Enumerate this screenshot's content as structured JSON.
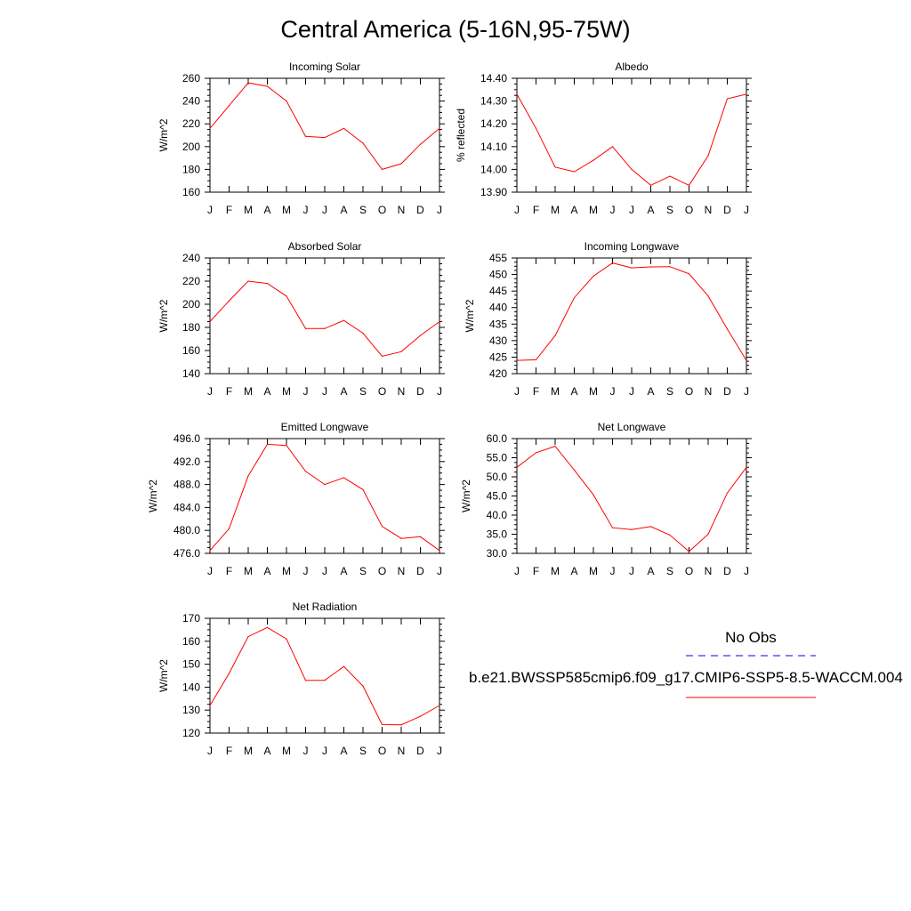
{
  "figure": {
    "title": "Central America (5-16N,95-75W)",
    "legend": {
      "obs_label": "No Obs",
      "obs_color": "#0000ff",
      "model_label": "b.e21.BWSSP585cmip6.f09_g17.CMIP6-SSP5-8.5-WACCM.004",
      "model_color": "#ff0000"
    }
  },
  "chart_data": [
    {
      "type": "line",
      "title": "Incoming Solar",
      "ylabel": "W/m^2",
      "x": [
        "J",
        "F",
        "M",
        "A",
        "M",
        "J",
        "J",
        "A",
        "S",
        "O",
        "N",
        "D",
        "J"
      ],
      "ylim": [
        160,
        260
      ],
      "yticks": [
        "160",
        "180",
        "200",
        "220",
        "240",
        "260"
      ],
      "grid": false,
      "series": [
        {
          "values": [
            216,
            236,
            256,
            253,
            240,
            209,
            208,
            216,
            203,
            180,
            185,
            202,
            216
          ]
        }
      ]
    },
    {
      "type": "line",
      "title": "Albedo",
      "ylabel": "% reflected",
      "x": [
        "J",
        "F",
        "M",
        "A",
        "M",
        "J",
        "J",
        "A",
        "S",
        "O",
        "N",
        "D",
        "J"
      ],
      "ylim": [
        13.9,
        14.4
      ],
      "yticks": [
        "13.90",
        "14.00",
        "14.10",
        "14.20",
        "14.30",
        "14.40"
      ],
      "grid": false,
      "series": [
        {
          "values": [
            14.33,
            14.18,
            14.01,
            13.99,
            14.04,
            14.1,
            14.0,
            13.93,
            13.97,
            13.93,
            14.06,
            14.31,
            14.33
          ]
        }
      ]
    },
    {
      "type": "line",
      "title": "Absorbed Solar",
      "ylabel": "W/m^2",
      "x": [
        "J",
        "F",
        "M",
        "A",
        "M",
        "J",
        "J",
        "A",
        "S",
        "O",
        "N",
        "D",
        "J"
      ],
      "ylim": [
        140,
        240
      ],
      "yticks": [
        "140",
        "160",
        "180",
        "200",
        "220",
        "240"
      ],
      "grid": false,
      "series": [
        {
          "values": [
            185,
            203,
            220,
            218,
            207,
            179,
            179,
            186,
            175,
            155,
            159,
            173,
            185
          ]
        }
      ]
    },
    {
      "type": "line",
      "title": "Incoming Longwave",
      "ylabel": "W/m^2",
      "x": [
        "J",
        "F",
        "M",
        "A",
        "M",
        "J",
        "J",
        "A",
        "S",
        "O",
        "N",
        "D",
        "J"
      ],
      "ylim": [
        420,
        455
      ],
      "yticks": [
        "420",
        "425",
        "430",
        "435",
        "440",
        "445",
        "450",
        "455"
      ],
      "grid": false,
      "series": [
        {
          "values": [
            424,
            424.2,
            431.5,
            443,
            449.5,
            453.5,
            452,
            452.3,
            452.4,
            450.2,
            443.5,
            433.5,
            424
          ]
        }
      ]
    },
    {
      "type": "line",
      "title": "Emitted Longwave",
      "ylabel": "W/m^2",
      "x": [
        "J",
        "F",
        "M",
        "A",
        "M",
        "J",
        "J",
        "A",
        "S",
        "O",
        "N",
        "D",
        "J"
      ],
      "ylim": [
        476,
        496
      ],
      "yticks": [
        "476.0",
        "480.0",
        "484.0",
        "488.0",
        "492.0",
        "496.0"
      ],
      "grid": false,
      "series": [
        {
          "values": [
            476.5,
            480.3,
            489.5,
            495,
            494.8,
            490.3,
            488,
            489.2,
            487.1,
            480.7,
            478.6,
            478.9,
            476.5
          ]
        }
      ]
    },
    {
      "type": "line",
      "title": "Net Longwave",
      "ylabel": "W/m^2",
      "x": [
        "J",
        "F",
        "M",
        "A",
        "M",
        "J",
        "J",
        "A",
        "S",
        "O",
        "N",
        "D",
        "J"
      ],
      "ylim": [
        30,
        60
      ],
      "yticks": [
        "30.0",
        "35.0",
        "40.0",
        "45.0",
        "50.0",
        "55.0",
        "60.0"
      ],
      "grid": false,
      "series": [
        {
          "values": [
            52.5,
            56.3,
            58,
            51.8,
            45.3,
            36.7,
            36.2,
            37,
            34.8,
            30.5,
            35,
            45.8,
            52.5
          ]
        }
      ]
    },
    {
      "type": "line",
      "title": "Net Radiation",
      "ylabel": "W/m^2",
      "x": [
        "J",
        "F",
        "M",
        "A",
        "M",
        "J",
        "J",
        "A",
        "S",
        "O",
        "N",
        "D",
        "J"
      ],
      "ylim": [
        120,
        170
      ],
      "yticks": [
        "120",
        "130",
        "140",
        "150",
        "160",
        "170"
      ],
      "grid": false,
      "series": [
        {
          "values": [
            132,
            146,
            162,
            166,
            161,
            143,
            143,
            149,
            140.5,
            123.7,
            123.6,
            127.3,
            132
          ]
        }
      ]
    }
  ]
}
